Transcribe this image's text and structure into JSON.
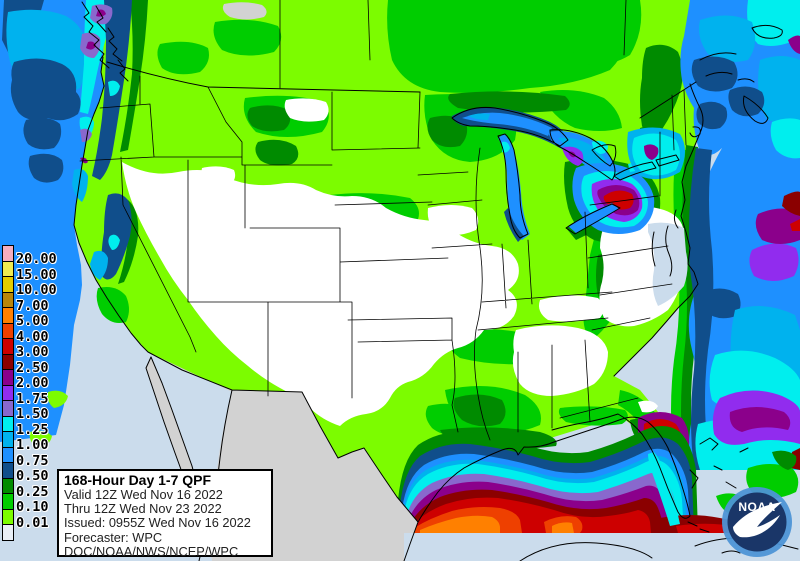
{
  "info_box": {
    "title": "168-Hour Day 1-7 QPF",
    "lines": [
      "Valid 12Z Wed Nov 16 2022",
      "Thru 12Z Wed Nov 23 2022",
      "Issued: 0955Z Wed Nov 16 2022",
      "Forecaster: WPC",
      "DOC/NOAA/NWS/NCEP/WPC"
    ]
  },
  "logo": {
    "text": "NOAA"
  },
  "legend": {
    "entries": [
      {
        "label": "20.00",
        "key": "q2000"
      },
      {
        "label": "15.00",
        "key": "q1500"
      },
      {
        "label": "10.00",
        "key": "q1000"
      },
      {
        "label": "7.00",
        "key": "q700"
      },
      {
        "label": "5.00",
        "key": "q500"
      },
      {
        "label": "4.00",
        "key": "q400"
      },
      {
        "label": "3.00",
        "key": "q300"
      },
      {
        "label": "2.50",
        "key": "q250"
      },
      {
        "label": "2.00",
        "key": "q200"
      },
      {
        "label": "1.75",
        "key": "q175"
      },
      {
        "label": "1.50",
        "key": "q150"
      },
      {
        "label": "1.25",
        "key": "q125"
      },
      {
        "label": "1.00",
        "key": "q100"
      },
      {
        "label": "0.75",
        "key": "q075"
      },
      {
        "label": "0.50",
        "key": "q050"
      },
      {
        "label": "0.25",
        "key": "q025"
      },
      {
        "label": "0.10",
        "key": "q010"
      },
      {
        "label": "0.01",
        "key": "q001"
      },
      {
        "label": "",
        "key": "no_data_swatch"
      }
    ]
  },
  "palette": {
    "q2000": "#F5AEBE",
    "q1500": "#EFEB52",
    "q1000": "#E3CC00",
    "q700": "#B8860B",
    "q500": "#FF8000",
    "q400": "#EE4000",
    "q300": "#CD0000",
    "q250": "#8B0000",
    "q200": "#8B008B",
    "q175": "#912CEE",
    "q150": "#8968CD",
    "q125": "#00EEEE",
    "q100": "#00B2EE",
    "q075": "#1E90FF",
    "q050": "#104E8B",
    "q025": "#008B00",
    "q010": "#00CD00",
    "q001": "#7CFC00",
    "ocean": "#CBDCEC",
    "no_data_land": "#D2D2D2",
    "no_data_swatch": "#E9EFF6",
    "land": "#FFFFFF",
    "line": "#000000",
    "logo_outer": "#4D94D6",
    "logo_inner": "#1A3668"
  }
}
